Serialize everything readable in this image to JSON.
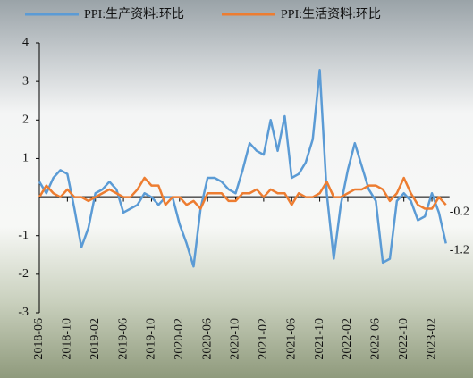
{
  "chart_data": {
    "type": "line",
    "categories": [
      "2018-06",
      null,
      null,
      null,
      "2018-10",
      null,
      null,
      null,
      "2019-02",
      null,
      null,
      null,
      "2019-06",
      null,
      null,
      null,
      "2019-10",
      null,
      null,
      null,
      "2020-02",
      null,
      null,
      null,
      "2020-06",
      null,
      null,
      null,
      "2020-10",
      null,
      null,
      null,
      "2021-02",
      null,
      null,
      null,
      "2021-06",
      null,
      null,
      null,
      "2021-10",
      null,
      null,
      null,
      "2022-02",
      null,
      null,
      null,
      "2022-06",
      null,
      null,
      null,
      "2022-10",
      null,
      null,
      null,
      "2023-02",
      null,
      null
    ],
    "series": [
      {
        "name": "PPI:生产资料:环比",
        "color": "#5b9bd5",
        "end_label": "-1.2",
        "values": [
          0.4,
          0.1,
          0.5,
          0.7,
          0.6,
          -0.3,
          -1.3,
          -0.8,
          0.1,
          0.2,
          0.4,
          0.2,
          -0.4,
          -0.3,
          -0.2,
          0.1,
          0.0,
          -0.2,
          0.0,
          0.0,
          -0.7,
          -1.2,
          -1.8,
          -0.3,
          0.5,
          0.5,
          0.4,
          0.2,
          0.1,
          0.7,
          1.4,
          1.2,
          1.1,
          2.0,
          1.2,
          2.1,
          0.5,
          0.6,
          0.9,
          1.5,
          3.3,
          0.1,
          -1.6,
          -0.2,
          0.7,
          1.4,
          0.8,
          0.2,
          -0.1,
          -1.7,
          -1.6,
          -0.1,
          0.1,
          -0.1,
          -0.6,
          -0.5,
          0.1,
          -0.4,
          -1.2
        ]
      },
      {
        "name": "PPI:生活资料:环比",
        "color": "#ed7d31",
        "end_label": "-0.2",
        "values": [
          0.0,
          0.3,
          0.1,
          0.0,
          0.2,
          0.0,
          0.0,
          -0.1,
          0.0,
          0.1,
          0.2,
          0.1,
          0.0,
          0.0,
          0.2,
          0.5,
          0.3,
          0.3,
          -0.2,
          0.0,
          0.0,
          -0.2,
          -0.1,
          -0.3,
          0.1,
          0.1,
          0.1,
          -0.1,
          -0.1,
          0.1,
          0.1,
          0.2,
          0.0,
          0.2,
          0.1,
          0.1,
          -0.2,
          0.1,
          0.0,
          0.0,
          0.1,
          0.4,
          0.0,
          0.0,
          0.1,
          0.2,
          0.2,
          0.3,
          0.3,
          0.2,
          -0.1,
          0.1,
          0.5,
          0.1,
          -0.2,
          -0.3,
          -0.3,
          0.0,
          -0.2
        ]
      }
    ],
    "ylim": [
      -3,
      4
    ],
    "yticks": [
      -3,
      -2,
      -1,
      1,
      2,
      3,
      4
    ],
    "legend": "top"
  }
}
